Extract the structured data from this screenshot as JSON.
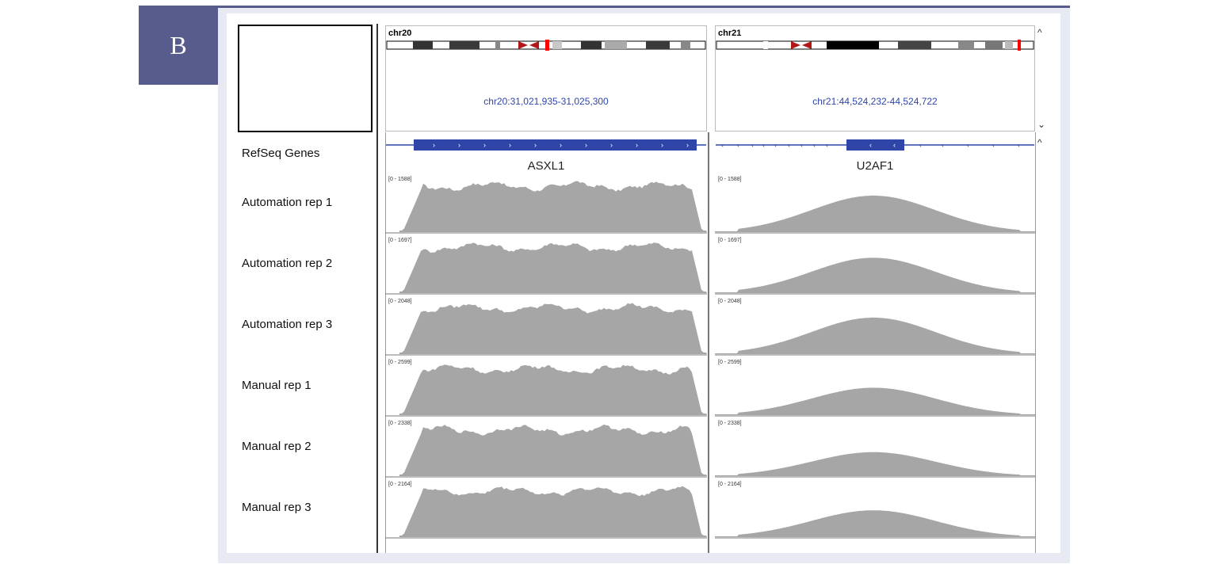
{
  "panel_label": "B",
  "colors": {
    "panel": "#575c8c",
    "coverage": "#a6a6a6",
    "gene": "#2f46a8",
    "centromere": "#b01818",
    "locus_marker": "#ff0000"
  },
  "loci": [
    {
      "chromosome": "chr20",
      "locus": "chr20:31,021,935-31,025,300",
      "gene": "ASXL1",
      "strand": "+"
    },
    {
      "chromosome": "chr21",
      "locus": "chr21:44,524,232-44,524,722",
      "gene": "U2AF1",
      "strand": "-"
    }
  ],
  "gene_track_name": "RefSeq Genes",
  "tracks": [
    {
      "name": "Automation rep 1",
      "range": "[0 - 1588]"
    },
    {
      "name": "Automation rep 2",
      "range": "[0 - 1697]"
    },
    {
      "name": "Automation rep 3",
      "range": "[0 - 2048]"
    },
    {
      "name": "Manual rep 1",
      "range": "[0 - 2599]"
    },
    {
      "name": "Manual rep 2",
      "range": "[0 - 2338]"
    },
    {
      "name": "Manual rep 3",
      "range": "[0 - 2164]"
    }
  ],
  "scrollbar": {
    "up_icon": "chevron-up-icon",
    "down_icon": "chevron-down-icon"
  }
}
